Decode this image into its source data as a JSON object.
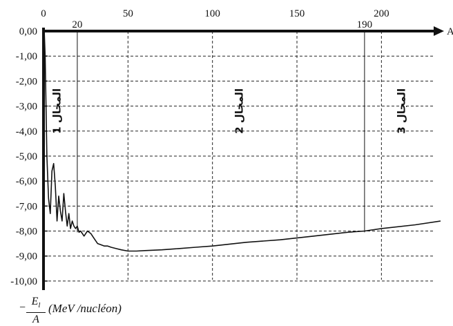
{
  "chart_data": {
    "type": "line",
    "xlabel": "A",
    "y_unit_text": "(MeV /nucléon)",
    "y_fraction": {
      "minus": "−",
      "numerator": "E",
      "numerator_sub": "l",
      "denominator": "A"
    },
    "xlim": [
      0,
      235
    ],
    "ylim": [
      -10.5,
      0
    ],
    "x_ticks": [
      {
        "value": 0,
        "label": "0"
      },
      {
        "value": 50,
        "label": "50"
      },
      {
        "value": 100,
        "label": "100"
      },
      {
        "value": 150,
        "label": "150"
      },
      {
        "value": 200,
        "label": "200"
      }
    ],
    "x_marks": [
      {
        "value": 20,
        "label": "20"
      },
      {
        "value": 190,
        "label": "190"
      }
    ],
    "y_ticks": [
      {
        "value": 0,
        "label": "0,00"
      },
      {
        "value": -1,
        "label": "-1,00"
      },
      {
        "value": -2,
        "label": "-2,00"
      },
      {
        "value": -3,
        "label": "-3,00"
      },
      {
        "value": -4,
        "label": "-4,00"
      },
      {
        "value": -5,
        "label": "-5,00"
      },
      {
        "value": -6,
        "label": "-6,00"
      },
      {
        "value": -7,
        "label": "-7,00"
      },
      {
        "value": -8,
        "label": "-8,00"
      },
      {
        "value": -9,
        "label": "-9,00"
      },
      {
        "value": -10,
        "label": "-10,00"
      }
    ],
    "grid": true,
    "zone_labels": [
      {
        "x": 10,
        "label": "المجال 1"
      },
      {
        "x": 118,
        "label": "المجال 2"
      },
      {
        "x": 214,
        "label": "المجال 3"
      }
    ],
    "series": [
      {
        "x": [
          0.5,
          1,
          2,
          3,
          4,
          5,
          6,
          7,
          8,
          9,
          10,
          11,
          12,
          13,
          14,
          15,
          16,
          17,
          18,
          19,
          20,
          21,
          22,
          24,
          26,
          28,
          30,
          32,
          34,
          36,
          38,
          40,
          43,
          46,
          50,
          55,
          60,
          70,
          80,
          90,
          100,
          120,
          140,
          160,
          180,
          190,
          200,
          220,
          235
        ],
        "y": [
          -0.1,
          -1.0,
          -5.0,
          -6.7,
          -7.3,
          -5.6,
          -5.3,
          -6.2,
          -7.6,
          -6.6,
          -7.2,
          -7.6,
          -6.5,
          -7.2,
          -7.8,
          -7.3,
          -7.9,
          -7.6,
          -7.8,
          -7.9,
          -7.8,
          -8.05,
          -8.0,
          -8.2,
          -8.0,
          -8.1,
          -8.3,
          -8.5,
          -8.55,
          -8.6,
          -8.6,
          -8.65,
          -8.7,
          -8.75,
          -8.8,
          -8.8,
          -8.78,
          -8.75,
          -8.7,
          -8.65,
          -8.6,
          -8.45,
          -8.35,
          -8.2,
          -8.05,
          -8.0,
          -7.9,
          -7.75,
          -7.6
        ]
      }
    ]
  }
}
